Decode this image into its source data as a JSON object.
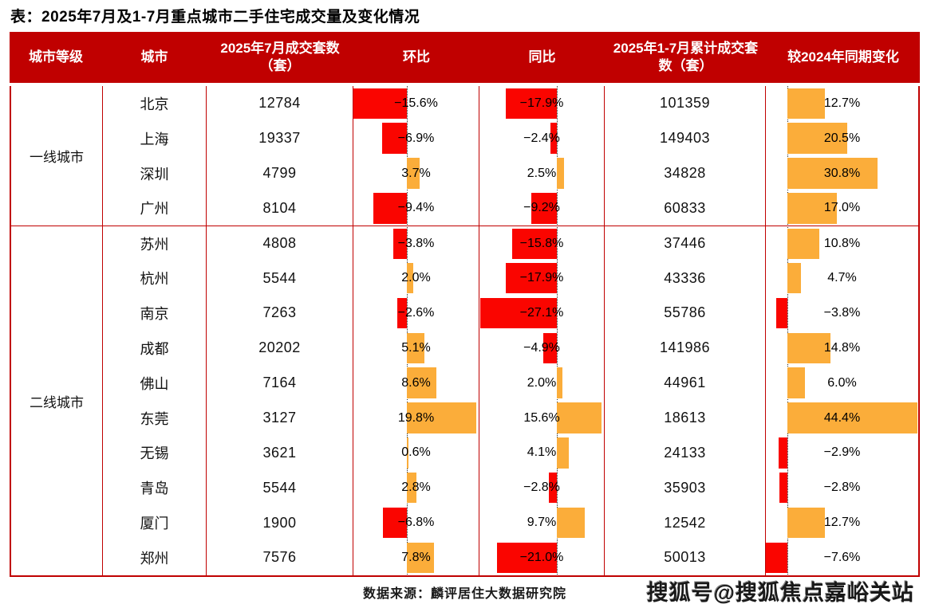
{
  "title": "表：2025年7月及1-7月重点城市二手住宅成交量及变化情况",
  "footer": {
    "source": "数据来源：麟评居住大数据研究院",
    "watermark": "搜狐号@搜狐焦点嘉峪关站"
  },
  "colors": {
    "header_bg": "#C00000",
    "border": "#C00000",
    "bar_negative": "#FA0500",
    "bar_positive": "#FBAD3A",
    "header_text": "#FFFFFF",
    "axis_line": "#222222"
  },
  "table": {
    "headers": [
      "城市等级",
      "城市",
      "2025年7月成交套数（套）",
      "环比",
      "同比",
      "2025年1-7月累计成交套数（套）",
      "较2024年同期变化"
    ],
    "groups": [
      {
        "label": "一线城市",
        "span": 4
      },
      {
        "label": "二线城市",
        "span": 10
      }
    ],
    "bar_columns": {
      "mom": {
        "axis_pct": 42.4,
        "pct_per_unit": 2.8
      },
      "yoy": {
        "axis_pct": 62.4,
        "pct_per_unit": 2.29
      },
      "chg": {
        "axis_pct": 14.1,
        "pct_per_unit": 1.925
      }
    },
    "rows": [
      {
        "city": "北京",
        "jul": "12784",
        "mom": {
          "v": -15.6,
          "t": "−15.6%"
        },
        "yoy": {
          "v": -17.9,
          "t": "−17.9%"
        },
        "cum": "101359",
        "chg": {
          "v": 12.7,
          "t": "12.7%"
        }
      },
      {
        "city": "上海",
        "jul": "19337",
        "mom": {
          "v": -6.9,
          "t": "−6.9%"
        },
        "yoy": {
          "v": -2.4,
          "t": "−2.4%"
        },
        "cum": "149403",
        "chg": {
          "v": 20.5,
          "t": "20.5%"
        }
      },
      {
        "city": "深圳",
        "jul": "4799",
        "mom": {
          "v": 3.7,
          "t": "3.7%"
        },
        "yoy": {
          "v": 2.5,
          "t": "2.5%"
        },
        "cum": "34828",
        "chg": {
          "v": 30.8,
          "t": "30.8%"
        }
      },
      {
        "city": "广州",
        "jul": "8104",
        "mom": {
          "v": -9.4,
          "t": "−9.4%"
        },
        "yoy": {
          "v": -9.2,
          "t": "−9.2%"
        },
        "cum": "60833",
        "chg": {
          "v": 17.0,
          "t": "17.0%"
        }
      },
      {
        "city": "苏州",
        "jul": "4808",
        "mom": {
          "v": -3.8,
          "t": "−3.8%"
        },
        "yoy": {
          "v": -15.8,
          "t": "−15.8%"
        },
        "cum": "37446",
        "chg": {
          "v": 10.8,
          "t": "10.8%"
        }
      },
      {
        "city": "杭州",
        "jul": "5544",
        "mom": {
          "v": 2.0,
          "t": "2.0%"
        },
        "yoy": {
          "v": -17.9,
          "t": "−17.9%"
        },
        "cum": "43336",
        "chg": {
          "v": 4.7,
          "t": "4.7%"
        }
      },
      {
        "city": "南京",
        "jul": "7263",
        "mom": {
          "v": -2.6,
          "t": "−2.6%"
        },
        "yoy": {
          "v": -27.1,
          "t": "−27.1%"
        },
        "cum": "55786",
        "chg": {
          "v": -3.8,
          "t": "−3.8%"
        }
      },
      {
        "city": "成都",
        "jul": "20202",
        "mom": {
          "v": 5.1,
          "t": "5.1%"
        },
        "yoy": {
          "v": -4.9,
          "t": "−4.9%"
        },
        "cum": "141986",
        "chg": {
          "v": 14.8,
          "t": "14.8%"
        }
      },
      {
        "city": "佛山",
        "jul": "7164",
        "mom": {
          "v": 8.6,
          "t": "8.6%"
        },
        "yoy": {
          "v": 2.0,
          "t": "2.0%"
        },
        "cum": "44961",
        "chg": {
          "v": 6.0,
          "t": "6.0%"
        }
      },
      {
        "city": "东莞",
        "jul": "3127",
        "mom": {
          "v": 19.8,
          "t": "19.8%"
        },
        "yoy": {
          "v": 15.6,
          "t": "15.6%"
        },
        "cum": "18613",
        "chg": {
          "v": 44.4,
          "t": "44.4%"
        }
      },
      {
        "city": "无锡",
        "jul": "3621",
        "mom": {
          "v": 0.6,
          "t": "0.6%"
        },
        "yoy": {
          "v": 4.1,
          "t": "4.1%"
        },
        "cum": "24133",
        "chg": {
          "v": -2.9,
          "t": "−2.9%"
        }
      },
      {
        "city": "青岛",
        "jul": "5544",
        "mom": {
          "v": 2.8,
          "t": "2.8%"
        },
        "yoy": {
          "v": -2.8,
          "t": "−2.8%"
        },
        "cum": "35903",
        "chg": {
          "v": -2.8,
          "t": "−2.8%"
        }
      },
      {
        "city": "厦门",
        "jul": "1900",
        "mom": {
          "v": -6.8,
          "t": "−6.8%"
        },
        "yoy": {
          "v": 9.7,
          "t": "9.7%"
        },
        "cum": "12542",
        "chg": {
          "v": 12.7,
          "t": "12.7%"
        }
      },
      {
        "city": "郑州",
        "jul": "7576",
        "mom": {
          "v": 7.8,
          "t": "7.8%"
        },
        "yoy": {
          "v": -21.0,
          "t": "−21.0%"
        },
        "cum": "50013",
        "chg": {
          "v": -7.6,
          "t": "−7.6%"
        }
      }
    ]
  },
  "chart_data": {
    "type": "table",
    "title": "表：2025年7月及1-7月重点城市二手住宅成交量及变化情况",
    "categories": [
      "北京",
      "上海",
      "深圳",
      "广州",
      "苏州",
      "杭州",
      "南京",
      "成都",
      "佛山",
      "东莞",
      "无锡",
      "青岛",
      "厦门",
      "郑州"
    ],
    "groups": {
      "一线城市": [
        "北京",
        "上海",
        "深圳",
        "广州"
      ],
      "二线城市": [
        "苏州",
        "杭州",
        "南京",
        "成都",
        "佛山",
        "东莞",
        "无锡",
        "青岛",
        "厦门",
        "郑州"
      ]
    },
    "series": [
      {
        "name": "2025年7月成交套数（套）",
        "values": [
          12784,
          19337,
          4799,
          8104,
          4808,
          5544,
          7263,
          20202,
          7164,
          3127,
          3621,
          5544,
          1900,
          7576
        ]
      },
      {
        "name": "环比",
        "unit": "%",
        "render": "bar",
        "values": [
          -15.6,
          -6.9,
          3.7,
          -9.4,
          -3.8,
          2.0,
          -2.6,
          5.1,
          8.6,
          19.8,
          0.6,
          2.8,
          -6.8,
          7.8
        ]
      },
      {
        "name": "同比",
        "unit": "%",
        "render": "bar",
        "values": [
          -17.9,
          -2.4,
          2.5,
          -9.2,
          -15.8,
          -17.9,
          -27.1,
          -4.9,
          2.0,
          15.6,
          4.1,
          -2.8,
          9.7,
          -21.0
        ]
      },
      {
        "name": "2025年1-7月累计成交套数（套）",
        "values": [
          101359,
          149403,
          34828,
          60833,
          37446,
          43336,
          55786,
          141986,
          44961,
          18613,
          24133,
          35903,
          12542,
          50013
        ]
      },
      {
        "name": "较2024年同期变化",
        "unit": "%",
        "render": "bar",
        "values": [
          12.7,
          20.5,
          30.8,
          17.0,
          10.8,
          4.7,
          -3.8,
          14.8,
          6.0,
          44.4,
          -2.9,
          -2.8,
          12.7,
          -7.6
        ]
      }
    ],
    "legend_position": "none",
    "grid": false,
    "bar_color_positive": "#FBAD3A",
    "bar_color_negative": "#FA0500"
  }
}
